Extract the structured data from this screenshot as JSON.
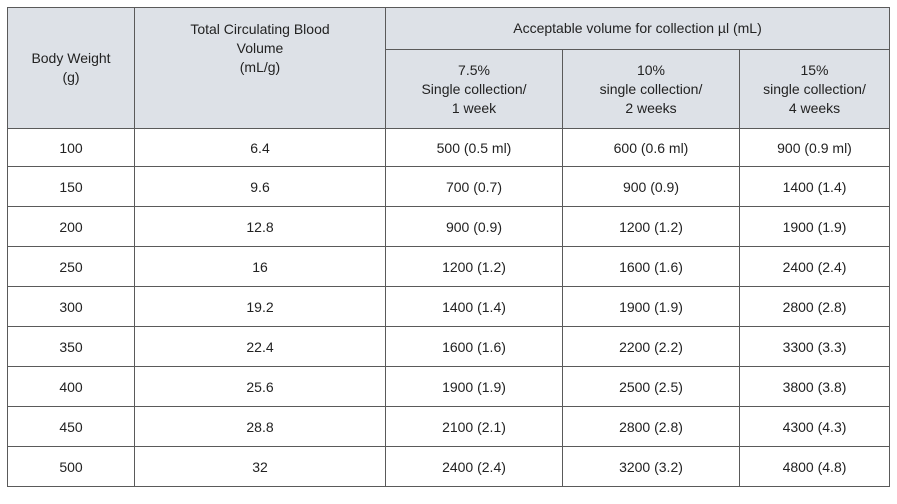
{
  "table": {
    "headers": {
      "body_weight": [
        "Body Weight",
        "(g)"
      ],
      "blood_volume": [
        "Total Circulating Blood",
        "Volume",
        "(mL/g)"
      ],
      "acceptable": "Acceptable volume for collection µl (mL)",
      "sub": [
        [
          "7.5%",
          "Single collection/",
          "1 week"
        ],
        [
          "10%",
          "single collection/",
          "2 weeks"
        ],
        [
          "15%",
          "single collection/",
          "4 weeks"
        ]
      ]
    },
    "rows": [
      [
        "100",
        "6.4",
        "500 (0.5 ml)",
        "600 (0.6 ml)",
        "900 (0.9 ml)"
      ],
      [
        "150",
        "9.6",
        "700 (0.7)",
        "900 (0.9)",
        "1400 (1.4)"
      ],
      [
        "200",
        "12.8",
        "900 (0.9)",
        "1200 (1.2)",
        "1900 (1.9)"
      ],
      [
        "250",
        "16",
        "1200 (1.2)",
        "1600 (1.6)",
        "2400 (2.4)"
      ],
      [
        "300",
        "19.2",
        "1400 (1.4)",
        "1900 (1.9)",
        "2800 (2.8)"
      ],
      [
        "350",
        "22.4",
        "1600 (1.6)",
        "2200 (2.2)",
        "3300 (3.3)"
      ],
      [
        "400",
        "25.6",
        "1900 (1.9)",
        "2500 (2.5)",
        "3800 (3.8)"
      ],
      [
        "450",
        "28.8",
        "2100 (2.1)",
        "2800 (2.8)",
        "4300 (4.3)"
      ],
      [
        "500",
        "32",
        "2400 (2.4)",
        "3200 (3.2)",
        "4800 (4.8)"
      ]
    ]
  },
  "colors": {
    "header_bg": "#dde1e7",
    "border": "#5a5a5a",
    "text": "#222222"
  }
}
